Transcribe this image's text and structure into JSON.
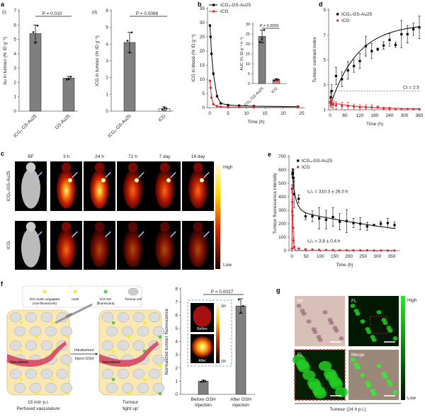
{
  "panel_labels": {
    "a": "a",
    "b": "b",
    "c": "c",
    "d": "d",
    "e": "e",
    "f": "f",
    "g": "g",
    "a_i": "(i)",
    "a_ii": "(ii)"
  },
  "colors": {
    "conjugate": "#000000",
    "free_icg": "#e8202a",
    "bar": "#7f7f7f",
    "inset_bar_icg": "#f07a7a",
    "vessel": "#d9566a",
    "tissue": "#fbe8b0",
    "gfp": "#22dd22"
  },
  "chart_data": [
    {
      "id": "a_i",
      "type": "bar",
      "ylabel": "Au in tumour (% ID g⁻¹)",
      "categories": [
        "ICG₄-GS-Au25",
        "GS-Au25"
      ],
      "values": [
        5.4,
        2.3
      ],
      "errors": [
        0.6,
        0.12
      ],
      "points": [
        [
          5.5,
          4.75,
          5.95
        ],
        [
          2.2,
          2.25,
          2.4
        ]
      ],
      "ylim": [
        0,
        7
      ],
      "yticks": [
        0,
        1,
        2,
        3,
        4,
        5,
        6,
        7
      ],
      "annotation": "P = 0.010"
    },
    {
      "id": "a_ii",
      "type": "bar",
      "ylabel": "ICG in tumour (% ID g⁻¹)",
      "categories": [
        "ICG₄-GS-Au25",
        "ICG"
      ],
      "values": [
        4.1,
        0.15
      ],
      "errors": [
        0.6,
        0.1
      ],
      "points": [
        [
          4.2,
          3.5,
          4.7
        ],
        [
          0.1,
          0.2,
          0.15
        ]
      ],
      "ylim": [
        0,
        6
      ],
      "yticks": [
        0,
        1,
        2,
        3,
        4,
        5,
        6
      ],
      "annotation": "P = 0.0066"
    },
    {
      "id": "b",
      "type": "line",
      "xlabel": "Time (h)",
      "ylabel": "ICG in blood (% ID g⁻¹)",
      "xlim": [
        0,
        25
      ],
      "xticks": [
        0,
        5,
        10,
        15,
        20,
        25
      ],
      "ylim": [
        0,
        35
      ],
      "yticks": [
        0,
        5,
        10,
        15,
        20,
        25,
        30,
        35
      ],
      "legend": "top",
      "series": [
        {
          "name": "ICG₄-GS-Au25",
          "x": [
            0.08,
            0.25,
            0.5,
            1,
            2,
            3,
            5,
            8,
            12,
            24
          ],
          "y": [
            29,
            25,
            19,
            12,
            4,
            1.5,
            0.9,
            0.7,
            0.5,
            0.3
          ]
        },
        {
          "name": "ICG",
          "x": [
            0.08,
            0.25,
            0.5,
            1,
            2,
            3,
            5,
            8,
            12,
            24
          ],
          "y": [
            9.5,
            7,
            3.5,
            1.2,
            0.5,
            0.3,
            0.2,
            0.2,
            0.1,
            0.1
          ]
        }
      ]
    },
    {
      "id": "b_inset",
      "type": "bar",
      "ylabel": "AUC (% ID g⁻¹ h⁻¹)",
      "categories": [
        "ICG₄-GS-Au25",
        "ICG"
      ],
      "values": [
        23.8,
        1.9
      ],
      "errors": [
        3.2,
        0.5
      ],
      "points": [
        [
          21,
          22.5,
          27
        ],
        [
          1.5,
          2.2,
          2
        ]
      ],
      "ylim": [
        0,
        30
      ],
      "yticks": [
        0,
        5,
        10,
        15,
        20,
        25,
        30
      ],
      "annotation": "P = 0.0059"
    },
    {
      "id": "d",
      "type": "scatter",
      "xlabel": "Time (h)",
      "ylabel": "Tumour contrast index",
      "xlim": [
        0,
        360
      ],
      "xticks": [
        0,
        60,
        120,
        180,
        240,
        300,
        360
      ],
      "ylim": [
        1,
        9
      ],
      "yticks": [
        3,
        5,
        7,
        9
      ],
      "extra_ytick": 1,
      "threshold": {
        "value": 2.5,
        "label": "CI = 2.5"
      },
      "legend": "top-left",
      "series": [
        {
          "name": "ICG₄-GS-Au25",
          "x": [
            1,
            3,
            6,
            24,
            48,
            72,
            96,
            120,
            144,
            168,
            192,
            216,
            240,
            264,
            288,
            312,
            336,
            360
          ],
          "y": [
            1.6,
            2.0,
            2.5,
            3.7,
            3.45,
            4.15,
            4.5,
            4.9,
            6.1,
            5.7,
            5.85,
            6.15,
            6.6,
            6.2,
            7.05,
            7.05,
            7.45,
            7.6
          ],
          "err": [
            0.3,
            0.4,
            0.5,
            0.7,
            0.6,
            0.7,
            0.5,
            0.6,
            0.8,
            0.6,
            0.1,
            0.3,
            0.5,
            0.2,
            1.1,
            0.7,
            0.5,
            0.9
          ]
        },
        {
          "name": "ICG",
          "x": [
            1,
            3,
            6,
            12,
            24,
            48,
            72,
            96,
            120,
            144,
            168,
            192,
            216,
            240,
            264,
            288,
            312,
            336,
            360
          ],
          "y": [
            1.6,
            1.5,
            1.45,
            1.4,
            1.35,
            1.3,
            1.3,
            1.25,
            1.2,
            1.2,
            1.2,
            1.2,
            1.1,
            1.1,
            1.05,
            1.05,
            1.05,
            1.05,
            1.05
          ],
          "err": [
            0.3,
            0.3,
            0.3,
            0.3,
            0.3,
            0.3,
            0.3,
            0.2,
            0.2,
            0.2,
            0.2,
            0.1,
            0.1,
            0.1,
            0.05,
            0.05,
            0.05,
            0.05,
            0.05
          ]
        }
      ]
    },
    {
      "id": "c",
      "type": "image-grid",
      "columns": [
        "BF",
        "3 h",
        "24 h",
        "72 h",
        "7 day",
        "14 day"
      ],
      "rows": [
        "ICG₄-GS-Au25",
        "ICG"
      ],
      "colorbar": {
        "high": "High",
        "low": "Low"
      }
    },
    {
      "id": "e",
      "type": "scatter",
      "xlabel": "Time (h)",
      "ylabel": "Tumour fluorescence intensity",
      "xlim": [
        0,
        360
      ],
      "xticks": [
        0,
        50,
        100,
        150,
        200,
        250,
        300,
        350
      ],
      "ylim": [
        0,
        700
      ],
      "yticks": [
        0,
        100,
        200,
        300,
        400,
        500,
        600,
        700
      ],
      "legend": "top-left",
      "annotations": [
        "t₁/₂ = 310.3 ± 26.0 h",
        "t₁/₂ = 3.8 ± 0.4 h"
      ],
      "series": [
        {
          "name": "ICG₄-GS-Au25",
          "x": [
            1,
            2,
            3,
            4,
            6,
            8,
            24,
            48,
            72,
            96,
            120,
            144,
            168,
            192,
            216,
            240,
            264,
            288,
            312,
            336,
            360
          ],
          "y": [
            460,
            570,
            580,
            575,
            540,
            420,
            385,
            255,
            255,
            240,
            230,
            250,
            215,
            220,
            205,
            200,
            180,
            190,
            200,
            205,
            190
          ],
          "err": [
            30,
            30,
            30,
            30,
            60,
            100,
            30,
            25,
            40,
            80,
            70,
            70,
            60,
            85,
            35,
            45,
            30,
            5,
            20,
            35,
            25
          ]
        },
        {
          "name": "ICG",
          "x": [
            0.5,
            1,
            1.5,
            2,
            3,
            4,
            6,
            8,
            24,
            48,
            72,
            96,
            120,
            144,
            168,
            192,
            216,
            240,
            264,
            288,
            312,
            336,
            360
          ],
          "y": [
            15,
            290,
            360,
            460,
            260,
            170,
            75,
            25,
            15,
            10,
            8,
            6,
            5,
            4,
            3,
            3,
            2,
            2,
            2,
            1,
            1,
            1,
            1
          ],
          "err": [
            5,
            20,
            20,
            20,
            30,
            30,
            20,
            10,
            5,
            3,
            3,
            2,
            2,
            2,
            2,
            2,
            1,
            1,
            1,
            1,
            1,
            1,
            1
          ]
        }
      ]
    },
    {
      "id": "f",
      "type": "bar",
      "ylabel": "Normalized tumour fluorescence",
      "categories": [
        "Before GSH injection",
        "After GSH injection"
      ],
      "values": [
        1.0,
        6.7
      ],
      "errors": [
        0.08,
        0.55
      ],
      "points": [
        [
          0.95,
          1.05,
          1.0
        ],
        [
          7.2,
          6.2,
          6.7
        ]
      ],
      "ylim": [
        0,
        8
      ],
      "yticks": [
        0,
        1,
        2,
        3,
        4,
        5,
        6,
        7,
        8
      ],
      "annotation": "P = 0.0027",
      "inset": {
        "before": "Before",
        "after": "After",
        "cb_high": "10⁴",
        "cb_low": "10²"
      }
    }
  ],
  "schematic_f": {
    "legend": [
      "ICG-Au25 conjugates (non-fluorescent)",
      "Au25",
      "ICG-GS (fluorescent)",
      "Tumour cell"
    ],
    "vasculature": "Vasculature",
    "syringe": "GSH",
    "arrow_top": "Intratumour",
    "arrow_bottom": "Inject GSH",
    "left_caption": [
      "15 min p.i.",
      "Perfused vasculature"
    ],
    "right_caption": [
      "Tumour",
      "‘light up’"
    ]
  },
  "panel_g": {
    "tiles": [
      "BF",
      "FL",
      "FL",
      "Merge"
    ],
    "colorbar_high": "High",
    "colorbar_low": "Low",
    "caption": "Tumour (24 h p.i.)"
  }
}
